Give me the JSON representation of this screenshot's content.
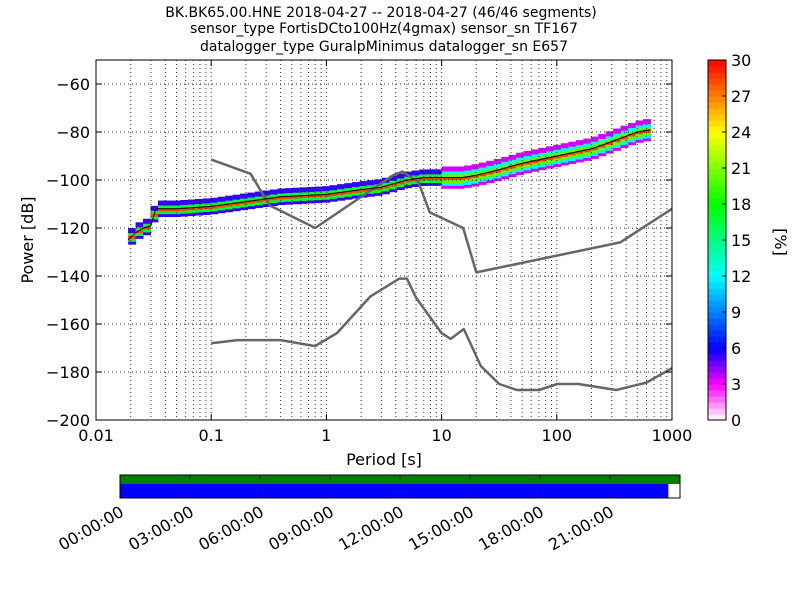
{
  "title_lines": [
    "BK.BK65.00.HNE   2018-04-27 -- 2018-04-27  (46/46 segments)",
    "sensor_type FortisDCto100Hz(4gmax) sensor_sn TF167",
    "datalogger_type GuralpMinimus datalogger_sn E657"
  ],
  "colors": {
    "noise_model": "#666666",
    "mean_line": "#000000",
    "data_available": "#0000ff",
    "gaps_bar": "#008000"
  },
  "chart_data": [
    {
      "type": "heatmap",
      "title": "BK.BK65.00.HNE   2018-04-27 -- 2018-04-27  (46/46 segments)",
      "xlabel": "Period [s]",
      "ylabel": "Power [dB]",
      "xscale": "log",
      "xlim": [
        0.01,
        1000
      ],
      "ylim": [
        -200,
        -50
      ],
      "xticks": [
        "0.01",
        "0.1",
        "1",
        "10",
        "100",
        "1000"
      ],
      "yticks": [
        -200,
        -180,
        -160,
        -140,
        -120,
        -100,
        -80,
        -60
      ],
      "colorbar": {
        "label": "[%]",
        "range": [
          0,
          30
        ],
        "ticks": [
          0,
          3,
          6,
          9,
          12,
          15,
          18,
          21,
          24,
          27,
          30
        ],
        "colormap": "pqlx"
      },
      "grid": true,
      "series": [
        {
          "name": "",
          "kind": "psd_mean",
          "x": [
            0.019,
            0.022,
            0.026,
            0.03,
            0.033,
            0.05,
            0.1,
            0.2,
            0.4,
            1,
            2,
            3,
            5,
            7,
            10,
            15,
            20,
            30,
            50,
            100,
            200,
            300,
            500,
            650
          ],
          "y": [
            -125,
            -122,
            -120,
            -119,
            -112,
            -112,
            -111,
            -109,
            -107,
            -106,
            -104,
            -103,
            -100,
            -99,
            -99,
            -99,
            -98,
            -96,
            -93,
            -90,
            -87,
            -84,
            -80,
            -79
          ]
        },
        {
          "name": "",
          "kind": "noise_model_high",
          "x": [
            0.1,
            0.22,
            0.32,
            0.8,
            3.8,
            4.6,
            6.3,
            7.9,
            15.4,
            20,
            354.8,
            1000
          ],
          "y": [
            -91.5,
            -97.4,
            -110.5,
            -120,
            -98,
            -96.5,
            -101,
            -113.5,
            -120,
            -138.5,
            -126,
            -112
          ]
        },
        {
          "name": "",
          "kind": "noise_model_low",
          "x": [
            0.1,
            0.17,
            0.4,
            0.8,
            1.24,
            2.4,
            4.3,
            5,
            6,
            10,
            12,
            15.6,
            21.9,
            31.6,
            45,
            70,
            101,
            154,
            328,
            600,
            1000
          ],
          "y": [
            -168,
            -166.7,
            -166.7,
            -169.2,
            -163.7,
            -148.6,
            -141.1,
            -141.1,
            -149,
            -163.8,
            -166.2,
            -162.1,
            -177.5,
            -185,
            -187.5,
            -187.5,
            -185,
            -185,
            -187.5,
            -184.4,
            -178.4
          ]
        }
      ]
    },
    {
      "type": "bar",
      "kind": "data-availability-timeline",
      "xticks": [
        "00:00:00",
        "03:00:00",
        "06:00:00",
        "09:00:00",
        "12:00:00",
        "15:00:00",
        "18:00:00",
        "21:00:00"
      ],
      "xlim_hours": [
        0,
        24
      ],
      "series": [
        {
          "name": "",
          "kind": "gaps",
          "start_hour": 0,
          "end_hour": 24
        },
        {
          "name": "",
          "kind": "data",
          "start_hour": 0,
          "end_hour": 23.5
        }
      ]
    }
  ]
}
